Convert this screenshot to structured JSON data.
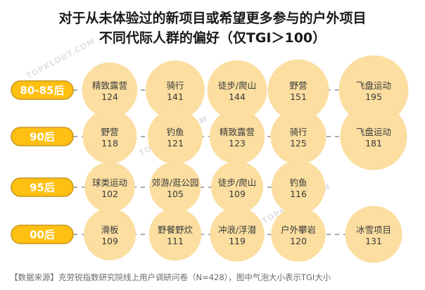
{
  "title": {
    "line1": "对于从未体验过的新项目或希望更多参与的户外项目",
    "line2": "不同代际人群的偏好（仅TGI＞100）"
  },
  "source": "【数据来源】克劳锐指数研究院线上用户调研问卷（N=428），图中气泡大小表示TGI大小",
  "watermark": "TOPKLOUT.COM",
  "colors": {
    "bubble": "#FBDEA0",
    "group_fill": "#FFC012",
    "group_stroke": "#C8961A",
    "bubble_text": "#3a3a3a",
    "dash": "#777777"
  },
  "chart_data": {
    "type": "bubble",
    "value_label": "TGI",
    "groups": [
      {
        "name": "80-85后",
        "items": [
          {
            "label": "精致露营",
            "value": 124
          },
          {
            "label": "骑行",
            "value": 141
          },
          {
            "label": "徒步/爬山",
            "value": 144
          },
          {
            "label": "野营",
            "value": 151
          },
          {
            "label": "飞盘运动",
            "value": 195
          }
        ]
      },
      {
        "name": "90后",
        "items": [
          {
            "label": "野营",
            "value": 118
          },
          {
            "label": "钓鱼",
            "value": 121
          },
          {
            "label": "精致露营",
            "value": 123
          },
          {
            "label": "骑行",
            "value": 125
          },
          {
            "label": "飞盘运动",
            "value": 181
          }
        ]
      },
      {
        "name": "95后",
        "items": [
          {
            "label": "球类运动",
            "value": 102
          },
          {
            "label": "郊游/逛公园",
            "value": 105
          },
          {
            "label": "徒步/爬山",
            "value": 109
          },
          {
            "label": "钓鱼",
            "value": 116
          }
        ]
      },
      {
        "name": "00后",
        "items": [
          {
            "label": "滑板",
            "value": 109
          },
          {
            "label": "野餐野炊",
            "value": 111
          },
          {
            "label": "冲浪/浮潜",
            "value": 119
          },
          {
            "label": "户外攀岩",
            "value": 120
          },
          {
            "label": "冰雪项目",
            "value": 131
          }
        ]
      }
    ]
  }
}
